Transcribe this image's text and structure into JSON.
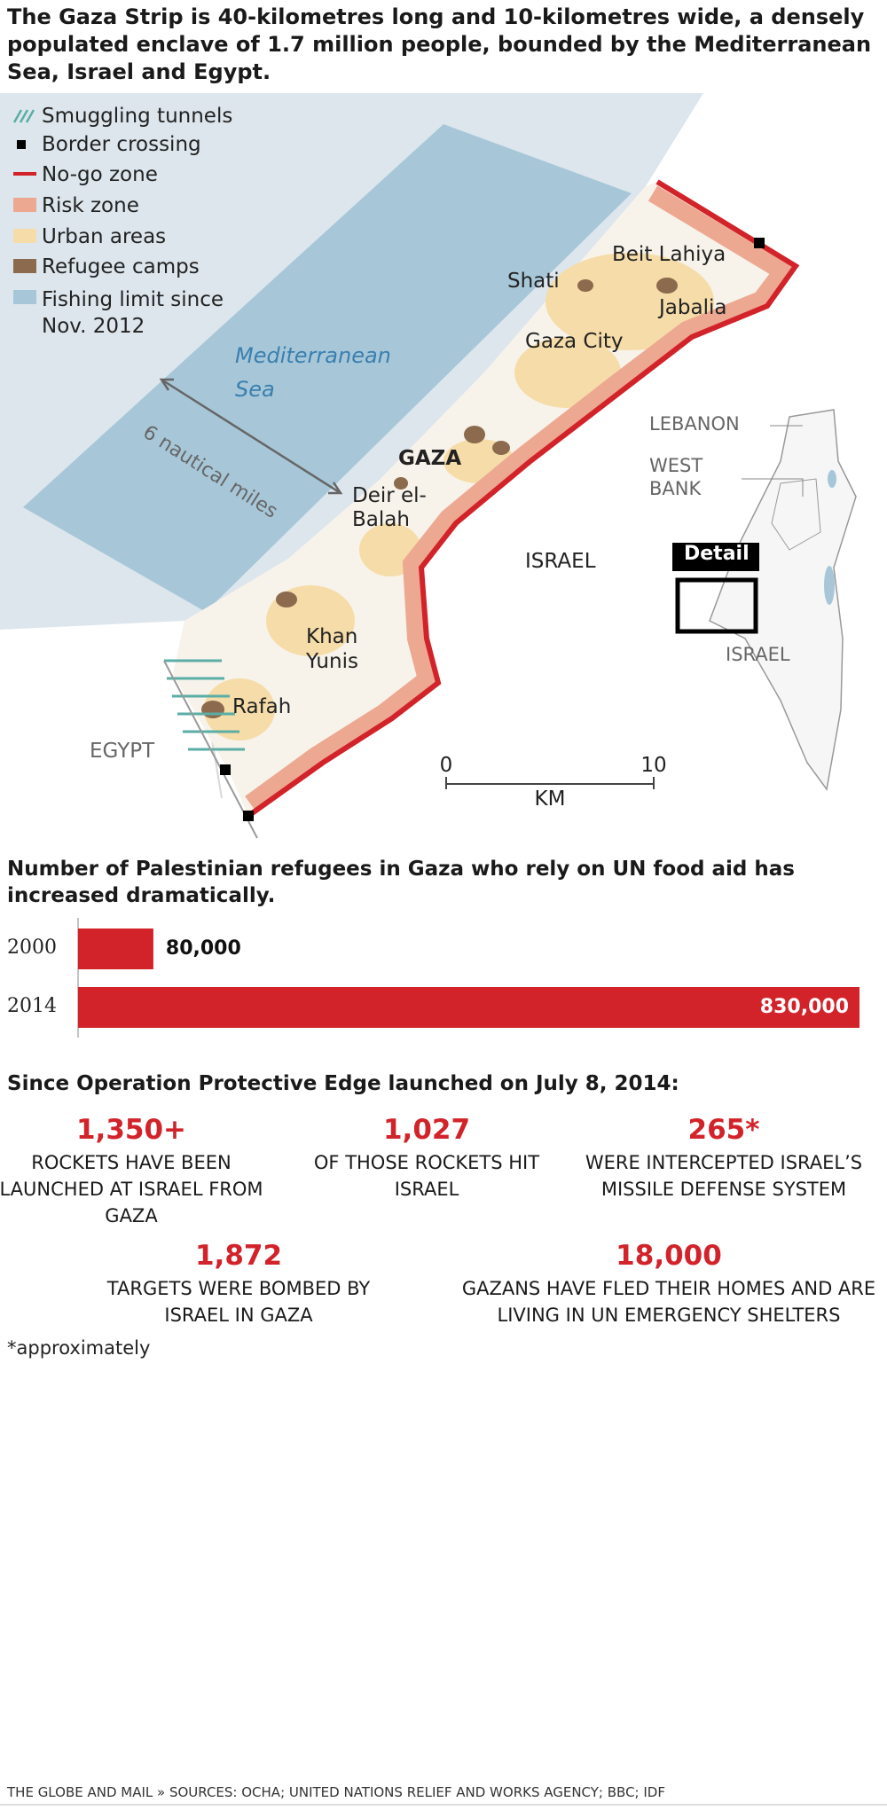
{
  "header": {
    "title": "The Gaza Strip is 40-kilometres long and 10-kilometres wide, a densely populated enclave of 1.7 million people, bounded by the Mediterranean Sea, Israel and Egypt."
  },
  "map": {
    "legend": [
      "Smuggling tunnels",
      "Border crossing",
      "No-go zone",
      "Risk zone",
      "Urban areas",
      "Refugee camps",
      "Fishing limit since Nov. 2012"
    ],
    "labels": {
      "sea": "Mediterranean Sea",
      "nautical": "6 nautical miles",
      "beit_lahiya": "Beit Lahiya",
      "shati": "Shati",
      "jabalia": "Jabalia",
      "gaza_city": "Gaza City",
      "gaza": "GAZA",
      "deir": "Deir el-Balah",
      "israel": "ISRAEL",
      "khan_yunis": "Khan Yunis",
      "rafah": "Rafah",
      "egypt": "EGYPT"
    },
    "inset": {
      "lebanon": "LEBANON",
      "west_bank": "WEST BANK",
      "detail": "Detail",
      "israel": "ISRAEL"
    },
    "scale": {
      "ticks": [
        0,
        10
      ],
      "unit": "KM"
    }
  },
  "chart_data": {
    "type": "bar",
    "title": "Number of Palestinian refugees in Gaza who rely on UN food aid has increased dramatically.",
    "categories": [
      "2000",
      "2014"
    ],
    "values": [
      80000,
      830000
    ],
    "value_labels": [
      "80,000",
      "830,000"
    ],
    "color": "#d2232a"
  },
  "stats": {
    "heading": "Since Operation Protective Edge launched on July 8, 2014:",
    "items": [
      {
        "value": "1,350+",
        "text": "Rockets have been launched at Israel from Gaza"
      },
      {
        "value": "1,027",
        "text": "of those rockets hit Israel"
      },
      {
        "value": "265*",
        "text": "were intercepted Israel’s missile defense system"
      },
      {
        "value": "1,872",
        "text": "targets were bombed by Israel in Gaza"
      },
      {
        "value": "18,000",
        "text": "Gazans have fled their homes and are living in UN emergency shelters"
      }
    ],
    "footnote": "*approximately"
  },
  "footer": "THE GLOBE AND MAIL » SOURCES: OCHA; UNITED NATIONS RELIEF AND WORKS AGENCY; BBC; IDF"
}
